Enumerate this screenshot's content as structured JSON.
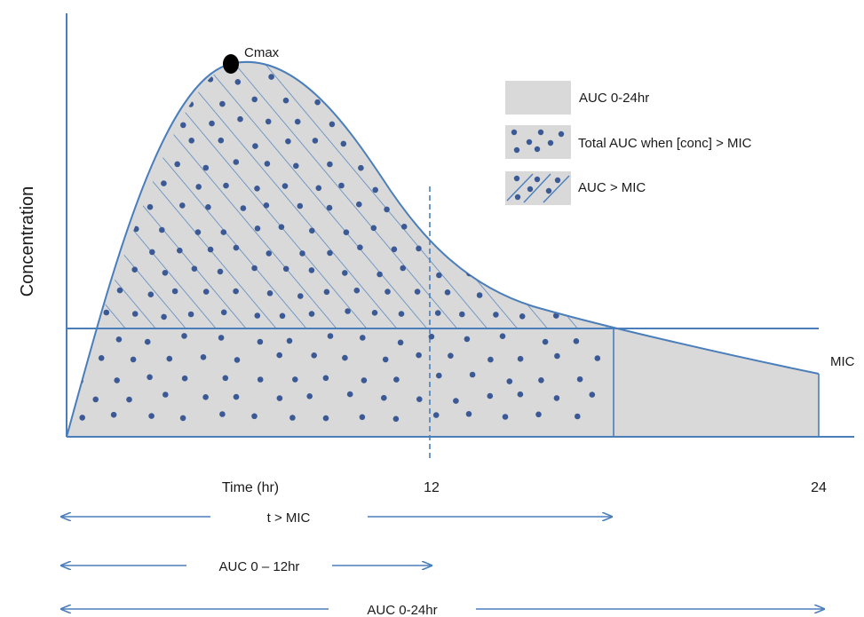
{
  "labels": {
    "y_axis": "Concentration",
    "x_axis": "Time (hr)",
    "cmax": "Cmax",
    "mic": "MIC",
    "tick_12": "12",
    "tick_24": "24"
  },
  "legend": [
    {
      "key": "auc_total",
      "label": "AUC 0-24hr"
    },
    {
      "key": "auc_conc_gt_mic",
      "label": "Total AUC when [conc] > MIC"
    },
    {
      "key": "auc_gt_mic",
      "label": "AUC > MIC"
    }
  ],
  "spans": [
    {
      "key": "t_gt_mic",
      "label": "t > MIC"
    },
    {
      "key": "auc_0_12",
      "label": "AUC 0 – 12hr"
    },
    {
      "key": "auc_0_24",
      "label": "AUC 0-24hr"
    }
  ],
  "colors": {
    "line": "#4a7ebb",
    "fill": "#d9d9d9",
    "dot": "#3b5a95",
    "text": "#1a1a1a",
    "cmax_point": "#000000"
  }
}
